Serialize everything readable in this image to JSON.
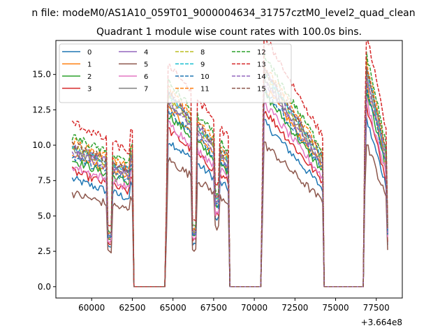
{
  "figure": {
    "suptitle": "n file: modeM0/AS1A10_059T01_9000004634_31757cztM0_level2_quad_clean",
    "title": "Quadrant 1 module wise count rates with 100.0s bins.",
    "offset_label": "+3.664e8"
  },
  "chart_data": {
    "type": "line",
    "title": "Quadrant 1 module wise count rates with 100.0s bins.",
    "xlabel": "",
    "ylabel": "",
    "x_offset": 366400000,
    "xlim": [
      57800,
      79100
    ],
    "ylim": [
      -0.8,
      17.4
    ],
    "xticks": [
      60000,
      62500,
      65000,
      67500,
      70000,
      72500,
      75000,
      77500
    ],
    "xtick_labels": [
      "60000",
      "62500",
      "65000",
      "67500",
      "70000",
      "72500",
      "75000",
      "77500"
    ],
    "yticks": [
      0,
      2.5,
      5,
      7.5,
      10,
      12.5,
      15
    ],
    "ytick_labels": [
      "0.0",
      "2.5",
      "5.0",
      "7.5",
      "10.0",
      "12.5",
      "15.0"
    ],
    "grid": false,
    "legend_position": "upper-left",
    "legend_columns": 4,
    "segments": [
      {
        "x_start": 58800,
        "x_end": 62600,
        "rate": "data"
      },
      {
        "x_start": 62600,
        "x_end": 64500,
        "rate": "zero"
      },
      {
        "x_start": 64500,
        "x_end": 68500,
        "rate": "data"
      },
      {
        "x_start": 68500,
        "x_end": 70400,
        "rate": "zero"
      },
      {
        "x_start": 70400,
        "x_end": 74300,
        "rate": "data"
      },
      {
        "x_start": 74300,
        "x_end": 76700,
        "rate": "zero"
      },
      {
        "x_start": 76700,
        "x_end": 78200,
        "rate": "data"
      }
    ],
    "series": [
      {
        "name": "0",
        "color": "#1f77b4",
        "dash": "solid",
        "level": 6.8
      },
      {
        "name": "1",
        "color": "#ff7f0e",
        "dash": "solid",
        "level": 8.3
      },
      {
        "name": "2",
        "color": "#2ca02c",
        "dash": "solid",
        "level": 8.0
      },
      {
        "name": "3",
        "color": "#d62728",
        "dash": "solid",
        "level": 7.3
      },
      {
        "name": "4",
        "color": "#9467bd",
        "dash": "solid",
        "level": 8.9
      },
      {
        "name": "5",
        "color": "#8c564b",
        "dash": "solid",
        "level": 5.9
      },
      {
        "name": "6",
        "color": "#e377c2",
        "dash": "solid",
        "level": 7.6
      },
      {
        "name": "7",
        "color": "#7f7f7f",
        "dash": "solid",
        "level": 8.6
      },
      {
        "name": "8",
        "color": "#bcbd22",
        "dash": "dashed",
        "level": 8.8
      },
      {
        "name": "9",
        "color": "#17becf",
        "dash": "dashed",
        "level": 8.9
      },
      {
        "name": "10",
        "color": "#1f77b4",
        "dash": "dashed",
        "level": 8.2
      },
      {
        "name": "11",
        "color": "#ff7f0e",
        "dash": "dashed",
        "level": 9.2
      },
      {
        "name": "12",
        "color": "#2ca02c",
        "dash": "dashed",
        "level": 9.5
      },
      {
        "name": "13",
        "color": "#d62728",
        "dash": "dashed",
        "level": 10.4
      },
      {
        "name": "14",
        "color": "#9467bd",
        "dash": "dashed",
        "level": 8.5
      },
      {
        "name": "15",
        "color": "#8c564b",
        "dash": "dashed",
        "level": 9.0
      }
    ]
  }
}
